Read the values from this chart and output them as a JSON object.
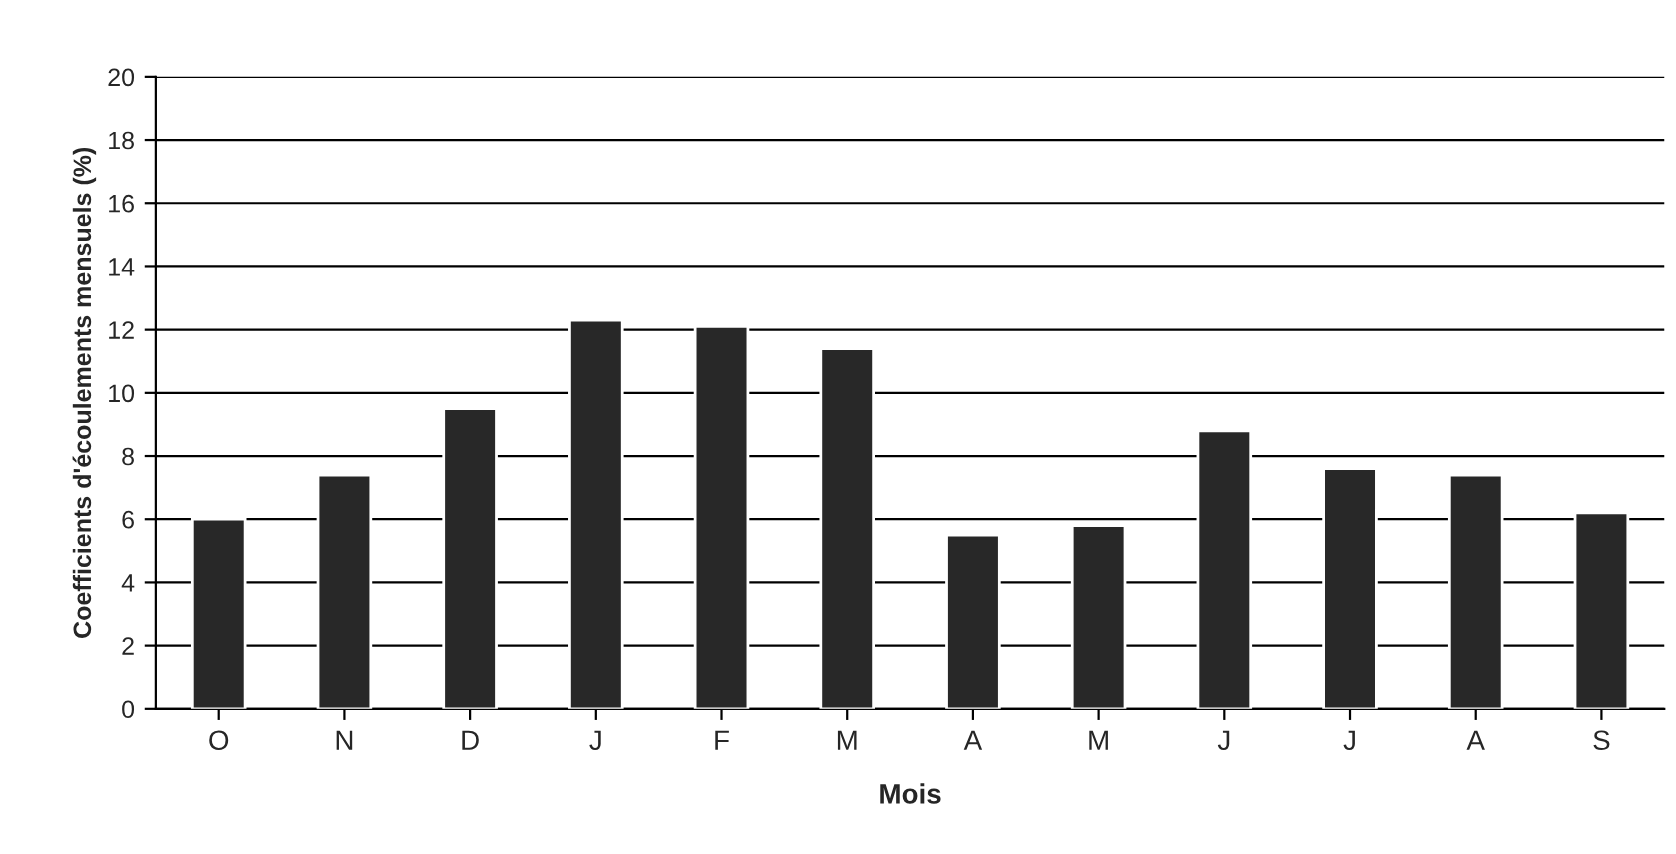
{
  "chart_data": {
    "type": "bar",
    "xlabel": "Mois",
    "ylabel": "Coefficients d'écoulements mensuels (%)",
    "categories": [
      "O",
      "N",
      "D",
      "J",
      "F",
      "M",
      "A",
      "M",
      "J",
      "J",
      "A",
      "S"
    ],
    "values": [
      6.0,
      7.4,
      9.5,
      12.3,
      12.1,
      11.4,
      5.5,
      5.8,
      8.8,
      7.6,
      7.4,
      6.2
    ],
    "color": "#282828",
    "ylim": [
      0,
      20
    ],
    "yticks": [
      0,
      2,
      4,
      6,
      8,
      10,
      12,
      14,
      16,
      18,
      20
    ],
    "grid": "y"
  }
}
